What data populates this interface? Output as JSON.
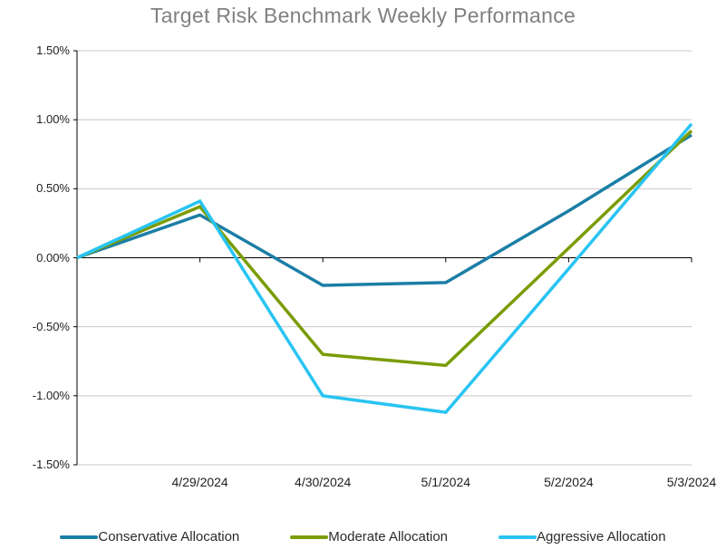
{
  "chart_data": {
    "type": "line",
    "title": "Target Risk Benchmark Weekly Performance",
    "categories": [
      "",
      "4/29/2024",
      "4/30/2024",
      "5/1/2024",
      "5/2/2024",
      "5/3/2024"
    ],
    "series": [
      {
        "name": "Conservative Allocation",
        "color": "#1b7ea6",
        "values": [
          0.0,
          0.31,
          -0.2,
          -0.18,
          0.34,
          0.89
        ]
      },
      {
        "name": "Moderate Allocation",
        "color": "#7a9c05",
        "values": [
          0.0,
          0.37,
          -0.7,
          -0.78,
          0.07,
          0.92
        ]
      },
      {
        "name": "Aggressive Allocation",
        "color": "#29c4f2",
        "values": [
          0.0,
          0.41,
          -1.0,
          -1.12,
          -0.08,
          0.97
        ]
      }
    ],
    "xlabel": "",
    "ylabel": "",
    "ylim": [
      -1.5,
      1.5
    ],
    "y_step": 0.5,
    "y_tick_labels": [
      "1.50%",
      "1.00%",
      "0.50%",
      "0.00%",
      "-0.50%",
      "-1.00%",
      "-1.50%"
    ],
    "grid": true,
    "legend_position": "bottom"
  },
  "colors": {
    "title": "#808080",
    "axis": "#000000",
    "gridline": "#c8c8c8",
    "tick_label": "#1f1f1f",
    "legend_text": "#2b2b2b",
    "background": "#ffffff"
  }
}
